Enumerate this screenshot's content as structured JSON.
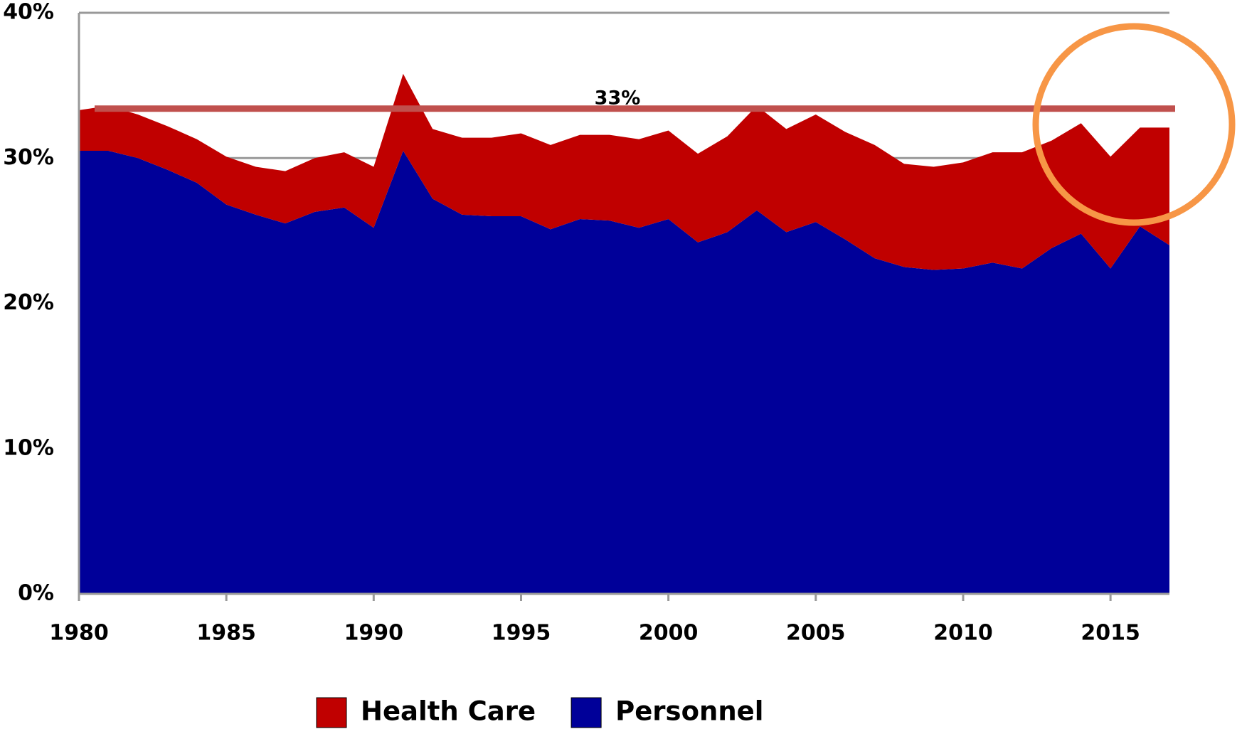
{
  "chart_data": {
    "type": "stacked_area",
    "x": [
      1980,
      1981,
      1982,
      1983,
      1984,
      1985,
      1986,
      1987,
      1988,
      1989,
      1990,
      1991,
      1992,
      1993,
      1994,
      1995,
      1996,
      1997,
      1998,
      1999,
      2000,
      2001,
      2002,
      2003,
      2004,
      2005,
      2006,
      2007,
      2008,
      2009,
      2010,
      2011,
      2012,
      2013,
      2014,
      2015,
      2016,
      2017
    ],
    "series": [
      {
        "name": "Health Care",
        "color": "#c00000",
        "values": [
          2.8,
          3.1,
          3.0,
          3.0,
          3.0,
          3.3,
          3.3,
          3.6,
          3.7,
          3.8,
          4.2,
          5.3,
          4.8,
          5.3,
          5.4,
          5.7,
          5.8,
          5.8,
          5.9,
          6.1,
          6.1,
          6.1,
          6.6,
          7.2,
          7.1,
          7.4,
          7.4,
          7.8,
          7.1,
          7.1,
          7.3,
          7.6,
          8.0,
          7.4,
          7.6,
          7.7,
          6.8,
          8.1
        ]
      },
      {
        "name": "Personnel",
        "color": "#000099",
        "values": [
          30.5,
          30.5,
          30.0,
          29.2,
          28.3,
          26.8,
          26.1,
          25.5,
          26.3,
          26.6,
          25.2,
          30.5,
          27.2,
          26.1,
          26.0,
          26.0,
          25.1,
          25.8,
          25.7,
          25.2,
          25.8,
          24.2,
          24.9,
          26.4,
          24.9,
          25.6,
          24.4,
          23.1,
          22.5,
          22.3,
          22.4,
          22.8,
          22.4,
          23.8,
          24.8,
          22.4,
          25.3,
          24.0
        ]
      }
    ],
    "xlim": [
      1980,
      2017
    ],
    "xticks": [
      1980,
      1985,
      1990,
      1995,
      2000,
      2005,
      2010,
      2015
    ],
    "ylim": [
      0,
      40
    ],
    "yticks": [
      {
        "value": 0,
        "label": "0%"
      },
      {
        "value": 10,
        "label": "10%"
      },
      {
        "value": 20,
        "label": "20%"
      },
      {
        "value": 30,
        "label": "30%"
      },
      {
        "value": 40,
        "label": "40%"
      }
    ],
    "grid": true,
    "reference_line": {
      "value": 33.4,
      "label": "33%",
      "color": "#c0504d"
    },
    "legend": "bottom"
  }
}
